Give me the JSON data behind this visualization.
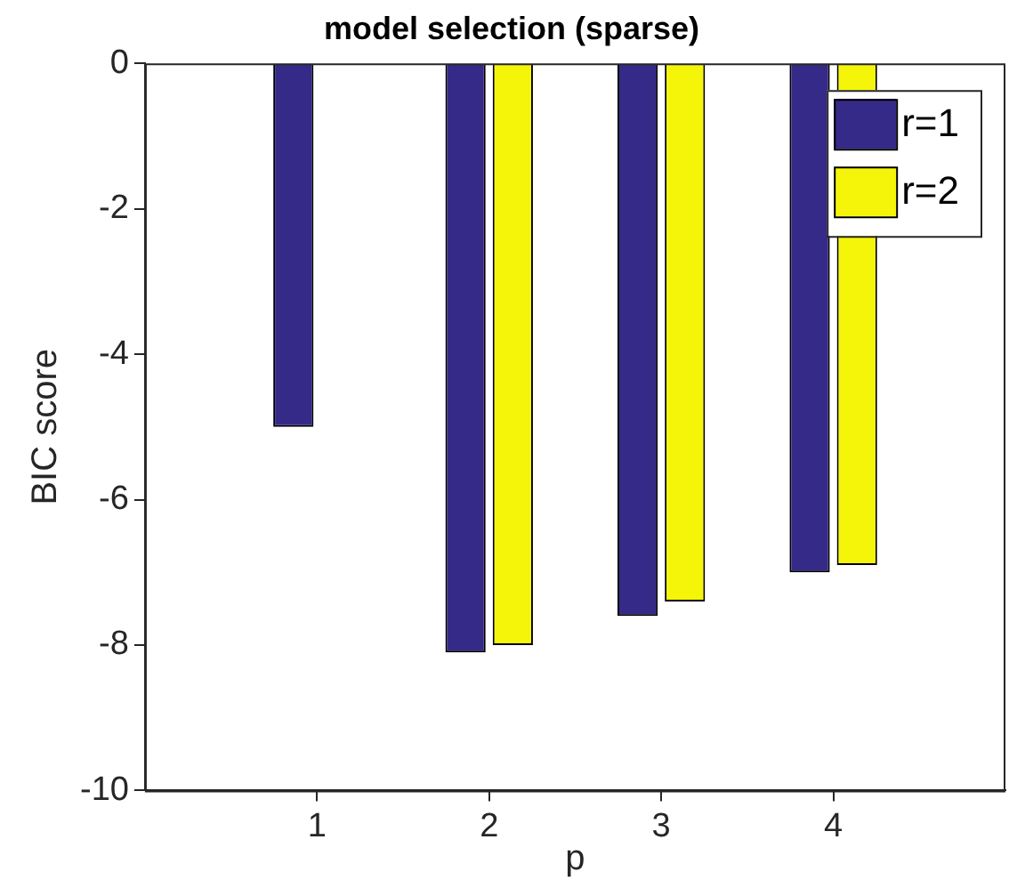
{
  "chart_data": {
    "type": "bar",
    "title": "model selection (sparse)",
    "xlabel": "p",
    "ylabel": "BIC score",
    "x": [
      1,
      2,
      3,
      4
    ],
    "xlim": [
      0,
      5
    ],
    "xticks": [
      1,
      2,
      3,
      4
    ],
    "ylim": [
      -10,
      0
    ],
    "yticks": [
      -10,
      -8,
      -6,
      -4,
      -2,
      0
    ],
    "series": [
      {
        "name": "r=1",
        "color": "#352a87",
        "values": [
          -5.0,
          -8.1,
          -7.6,
          -7.0
        ]
      },
      {
        "name": "r=2",
        "color": "#f5f50a",
        "values": [
          0,
          -8.0,
          -7.4,
          -6.9
        ]
      }
    ],
    "legend": "top right",
    "grid": false
  }
}
